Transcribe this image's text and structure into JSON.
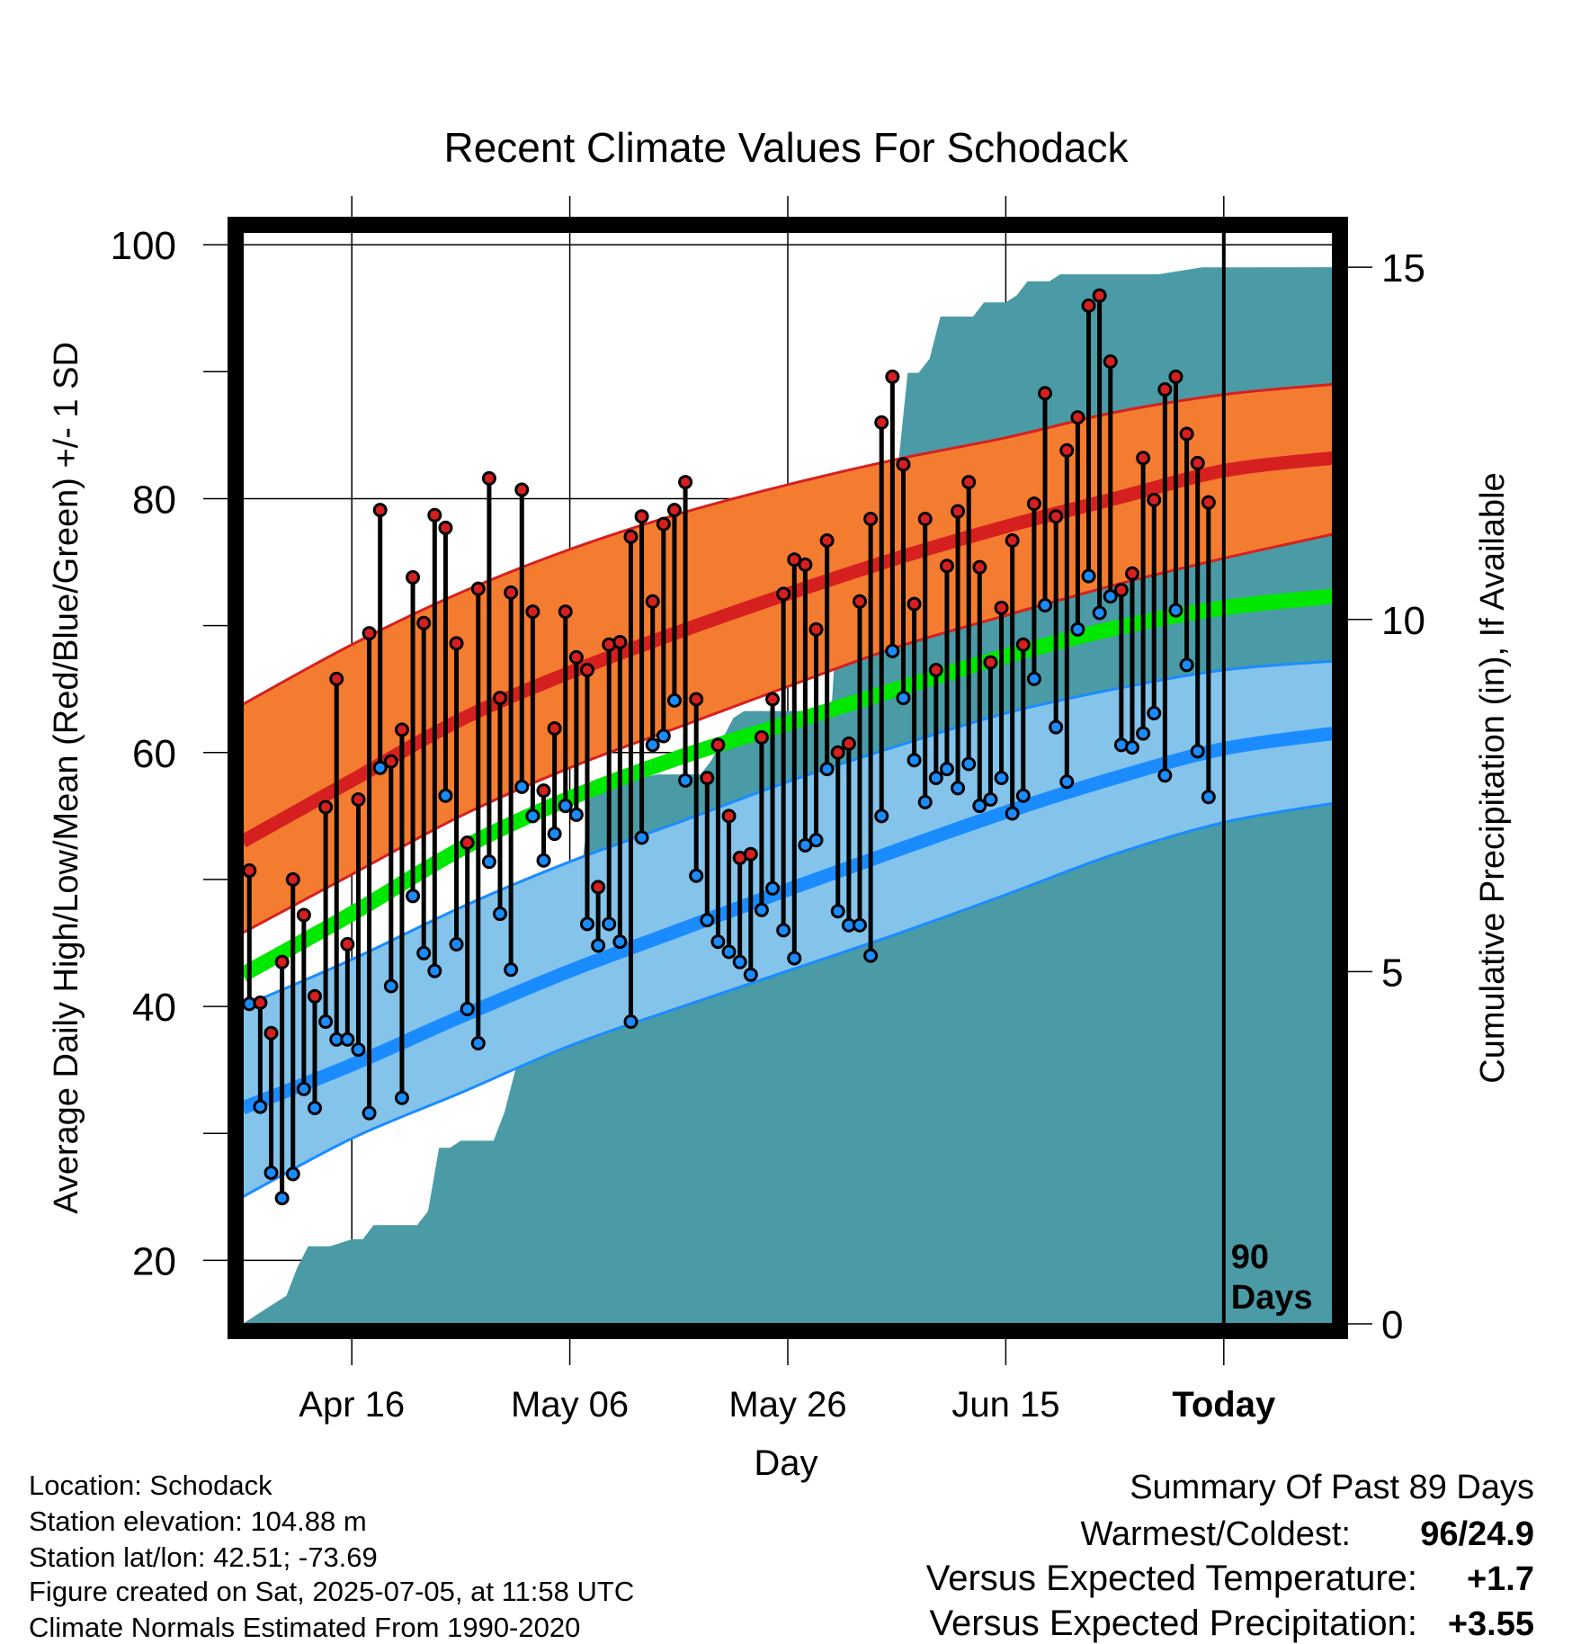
{
  "chart_data": {
    "type": "line",
    "title": "Recent Climate Values For Schodack",
    "xlabel": "Day",
    "ylabel": "Average Daily High/Low/Mean (Red/Blue/Green) +/- 1 SD",
    "y2label": "Cumulative Precipitation (in), If Available",
    "xticks": [
      "Apr 16",
      "May 06",
      "May 26",
      "Jun 15",
      "Today"
    ],
    "xtick_day_index": [
      10,
      30,
      50,
      70,
      90
    ],
    "ylim": [
      15,
      101
    ],
    "yticks": [
      20,
      40,
      60,
      80,
      100
    ],
    "y2lim": [
      0,
      15.5
    ],
    "y2ticks": [
      0,
      5,
      10,
      15
    ],
    "x_range_day_index": [
      0,
      100
    ],
    "today_index": 90,
    "today_label_line1": "90",
    "today_label_line2": "Days",
    "normals": {
      "x": [
        0,
        10,
        20,
        30,
        40,
        50,
        60,
        70,
        80,
        90,
        100
      ],
      "high": [
        53.0,
        57.8,
        62.6,
        66.3,
        69.5,
        72.5,
        75.3,
        77.8,
        80.0,
        82.2,
        83.2
      ],
      "high_sd_upper": [
        63.8,
        68.5,
        72.6,
        76.0,
        78.8,
        81.1,
        83.1,
        84.8,
        86.8,
        88.2,
        89.0
      ],
      "high_sd_lower": [
        45.8,
        50.4,
        55.0,
        58.8,
        62.0,
        65.2,
        68.3,
        70.8,
        73.2,
        75.3,
        77.2
      ],
      "mean": [
        42.5,
        47.3,
        52.4,
        56.4,
        59.6,
        62.3,
        65.0,
        67.6,
        69.8,
        71.4,
        72.3
      ],
      "low": [
        32.0,
        35.4,
        39.2,
        42.8,
        46.0,
        49.2,
        52.3,
        55.3,
        58.0,
        60.3,
        61.5
      ],
      "low_sd_upper": [
        40.0,
        43.7,
        47.8,
        51.4,
        54.5,
        57.7,
        60.5,
        63.1,
        65.0,
        66.5,
        67.2
      ],
      "low_sd_lower": [
        25.0,
        29.6,
        33.2,
        36.9,
        39.9,
        42.8,
        45.7,
        48.8,
        52.0,
        54.5,
        56.0
      ]
    },
    "daily_high": [
      50.7,
      40.3,
      37.9,
      43.5,
      50.0,
      47.2,
      40.8,
      55.7,
      65.8,
      44.9,
      56.3,
      69.4,
      79.1,
      59.3,
      61.8,
      73.8,
      70.2,
      78.7,
      77.7,
      68.6,
      52.9,
      72.9,
      81.6,
      64.3,
      72.6,
      80.7,
      71.1,
      57.0,
      61.9,
      71.1,
      67.5,
      66.5,
      49.4,
      68.5,
      68.7,
      77.0,
      78.6,
      71.9,
      78.0,
      79.1,
      81.3,
      64.2,
      58.0,
      60.6,
      55.0,
      51.7,
      52.0,
      61.2,
      64.2,
      72.5,
      75.2,
      74.8,
      69.7,
      76.7,
      60.0,
      60.7,
      71.9,
      78.4,
      86.0,
      89.6,
      82.7,
      71.7,
      78.4,
      66.5,
      74.7,
      79.0,
      81.3,
      74.6,
      67.1,
      71.4,
      76.7,
      68.5,
      79.6,
      88.3,
      78.6,
      83.8,
      86.4,
      95.2,
      96.0,
      90.8,
      72.8,
      74.1,
      83.2,
      79.9,
      88.6,
      89.6,
      85.1,
      82.8,
      79.7
    ],
    "daily_low": [
      40.2,
      32.1,
      26.9,
      24.9,
      26.8,
      33.5,
      32.0,
      38.8,
      37.4,
      37.4,
      36.6,
      31.6,
      58.8,
      41.6,
      32.8,
      48.7,
      44.2,
      42.8,
      56.6,
      44.9,
      39.8,
      37.1,
      51.4,
      47.3,
      42.9,
      57.3,
      55.0,
      51.5,
      53.6,
      55.8,
      55.1,
      46.5,
      44.8,
      46.5,
      45.1,
      38.8,
      53.3,
      60.6,
      61.3,
      64.1,
      57.8,
      50.3,
      46.8,
      45.1,
      44.3,
      43.5,
      42.5,
      47.6,
      49.3,
      46.0,
      43.8,
      52.7,
      53.1,
      58.7,
      47.5,
      46.4,
      46.4,
      44.0,
      55.0,
      68.0,
      64.3,
      59.4,
      56.1,
      58.0,
      58.7,
      57.2,
      59.1,
      55.8,
      56.3,
      58.0,
      55.2,
      56.6,
      65.8,
      71.6,
      62.0,
      57.7,
      69.7,
      73.9,
      71.0,
      72.3,
      60.6,
      60.4,
      61.5,
      63.1,
      58.2,
      71.2,
      66.9,
      60.1,
      56.5
    ],
    "precip": {
      "x": [
        0,
        2,
        4,
        5,
        6,
        7,
        8,
        10,
        11,
        12,
        13,
        14,
        15,
        16,
        17,
        18,
        19,
        20,
        21,
        22,
        23,
        24,
        26,
        27,
        28,
        29,
        30,
        31,
        32,
        33,
        34,
        35,
        38,
        40,
        42,
        43,
        44,
        45,
        46,
        47,
        48,
        49,
        50,
        51,
        52,
        53,
        54,
        55,
        56,
        58,
        59,
        60,
        61,
        62,
        63,
        64,
        65,
        66,
        67,
        68,
        69,
        70,
        71,
        72,
        73,
        74,
        75,
        76,
        80,
        84,
        86,
        88,
        90
      ],
      "y": [
        0,
        0.2,
        0.4,
        0.8,
        1.1,
        1.1,
        1.1,
        1.2,
        1.2,
        1.4,
        1.4,
        1.4,
        1.4,
        1.4,
        1.6,
        2.5,
        2.5,
        2.6,
        2.6,
        2.6,
        2.6,
        3.0,
        4.2,
        5.2,
        5.6,
        5.7,
        5.8,
        6.3,
        7.7,
        7.7,
        7.7,
        7.7,
        7.8,
        7.8,
        7.8,
        8.0,
        8.3,
        8.6,
        8.7,
        8.7,
        8.7,
        8.7,
        8.7,
        8.7,
        8.7,
        8.7,
        8.7,
        11.3,
        11.4,
        11.4,
        11.4,
        12.0,
        13.5,
        13.5,
        13.7,
        14.3,
        14.3,
        14.3,
        14.3,
        14.5,
        14.5,
        14.5,
        14.6,
        14.8,
        14.8,
        14.8,
        14.9,
        14.9,
        14.9,
        14.9,
        14.95,
        15.0,
        15.0
      ]
    },
    "colors": {
      "high_band": "#f47c30",
      "high_line": "#d62020",
      "mean_line": "#00e800",
      "low_band": "#84c3ea",
      "low_line": "#1a8cff",
      "high_marker": "#d62020",
      "low_marker": "#1a8cff",
      "precip_fill": "#4a9ba5"
    },
    "grid": true
  },
  "info": {
    "location": "Location: Schodack",
    "elevation": "Station elevation: 104.88 m",
    "latlon": "Station lat/lon: 42.51; -73.69",
    "created": "Figure created on Sat, 2025-07-05, at 11:58 UTC",
    "normals_period": "Climate Normals Estimated From 1990-2020"
  },
  "summary": {
    "title": "Summary Of Past 89 Days",
    "warm_cold_label": "Warmest/Coldest:",
    "warm_cold_value": "96/24.9",
    "temp_label": "Versus Expected Temperature:",
    "temp_value": "+1.7",
    "temp_color": "#e02020",
    "precip_label": "Versus Expected Precipitation:",
    "precip_value": "+3.55",
    "precip_color": "#22cc22"
  }
}
